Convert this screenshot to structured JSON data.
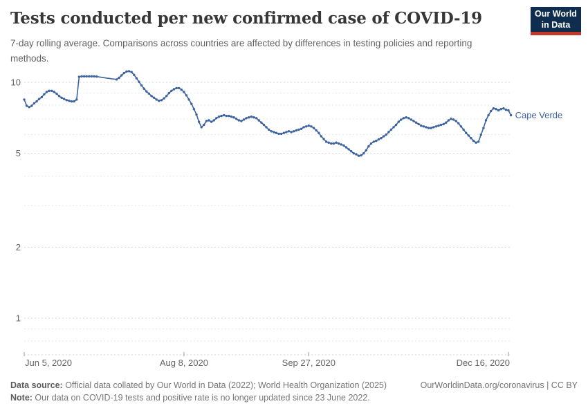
{
  "header": {
    "title": "Tests conducted per new confirmed case of COVID-19",
    "subtitle": "7-day rolling average. Comparisons across countries are affected by differences in testing policies and reporting methods.",
    "logo": {
      "line1": "Our World",
      "line2": "in Data"
    }
  },
  "chart_data": {
    "type": "line",
    "title": "Tests conducted per new confirmed case of COVID-19",
    "scale_y": "log",
    "ylim": [
      0.7,
      11.6
    ],
    "grid": true,
    "y_ticks_labeled": [
      1,
      2,
      5,
      10
    ],
    "y_gridlines_minor": [
      0.8,
      0.9,
      3,
      4,
      6,
      7,
      8,
      9
    ],
    "x_ticks": [
      {
        "label": "Jun 5, 2020",
        "day": 0,
        "align": "start"
      },
      {
        "label": "Aug 8, 2020",
        "day": 64,
        "align": "middle"
      },
      {
        "label": "Sep 27, 2020",
        "day": 114,
        "align": "middle"
      },
      {
        "label": "Dec 16, 2020",
        "day": 194,
        "align": "end"
      }
    ],
    "colors": {
      "line": "#3d639e",
      "grid_major": "#d5d5d5",
      "grid_minor": "#e7e7e7",
      "axis_text": "#636363",
      "tick_mark": "#999999"
    },
    "series": [
      {
        "name": "Cape Verde",
        "color": "#3d639e",
        "start_tick": "Jun 5, 2020",
        "no_marker_days": [
          30,
          31,
          32,
          33,
          34,
          35,
          36
        ],
        "values": [
          8.45,
          7.95,
          7.85,
          7.95,
          8.15,
          8.3,
          8.5,
          8.65,
          8.9,
          9.1,
          9.2,
          9.2,
          9.1,
          8.95,
          8.75,
          8.6,
          8.5,
          8.4,
          8.35,
          8.3,
          8.3,
          8.45,
          10.55,
          10.6,
          10.6,
          10.6,
          10.6,
          10.6,
          10.6,
          10.58,
          10.54,
          10.5,
          10.46,
          10.42,
          10.39,
          10.35,
          10.32,
          10.28,
          10.45,
          10.7,
          10.95,
          11.1,
          11.15,
          11.05,
          10.75,
          10.4,
          10.05,
          9.7,
          9.4,
          9.15,
          8.95,
          8.75,
          8.6,
          8.45,
          8.35,
          8.4,
          8.55,
          8.75,
          9.0,
          9.2,
          9.35,
          9.45,
          9.45,
          9.3,
          9.1,
          8.8,
          8.45,
          8.1,
          7.7,
          7.3,
          6.8,
          6.45,
          6.6,
          6.85,
          6.9,
          6.8,
          6.9,
          7.05,
          7.15,
          7.2,
          7.25,
          7.2,
          7.2,
          7.15,
          7.1,
          7.0,
          6.9,
          6.85,
          6.95,
          7.05,
          7.1,
          7.15,
          7.1,
          7.05,
          6.9,
          6.75,
          6.6,
          6.45,
          6.3,
          6.2,
          6.15,
          6.1,
          6.05,
          6.05,
          6.1,
          6.15,
          6.2,
          6.15,
          6.2,
          6.25,
          6.3,
          6.35,
          6.45,
          6.5,
          6.55,
          6.5,
          6.4,
          6.25,
          6.1,
          5.9,
          5.75,
          5.6,
          5.55,
          5.5,
          5.5,
          5.55,
          5.5,
          5.45,
          5.4,
          5.3,
          5.2,
          5.1,
          5.0,
          4.95,
          4.88,
          4.9,
          5.0,
          5.15,
          5.35,
          5.5,
          5.6,
          5.65,
          5.73,
          5.8,
          5.9,
          6.0,
          6.15,
          6.3,
          6.45,
          6.6,
          6.8,
          6.95,
          7.05,
          7.1,
          7.05,
          6.95,
          6.85,
          6.75,
          6.65,
          6.55,
          6.5,
          6.45,
          6.4,
          6.4,
          6.45,
          6.5,
          6.55,
          6.6,
          6.65,
          6.75,
          6.9,
          7.0,
          6.95,
          6.85,
          6.7,
          6.5,
          6.3,
          6.1,
          5.95,
          5.8,
          5.65,
          5.55,
          5.6,
          6.0,
          6.4,
          6.9,
          7.25,
          7.55,
          7.75,
          7.7,
          7.6,
          7.7,
          7.75,
          7.65,
          7.6,
          7.25
        ]
      }
    ]
  },
  "footer": {
    "source_label": "Data source:",
    "source_text": " Official data collated by Our World in Data (2022); World Health Organization (2025)",
    "note_label": "Note:",
    "note_text": " Our data on COVID-19 tests and positive rate is no longer updated since 23 June 2022.",
    "link_text": "OurWorldinData.org/coronavirus | CC BY"
  }
}
